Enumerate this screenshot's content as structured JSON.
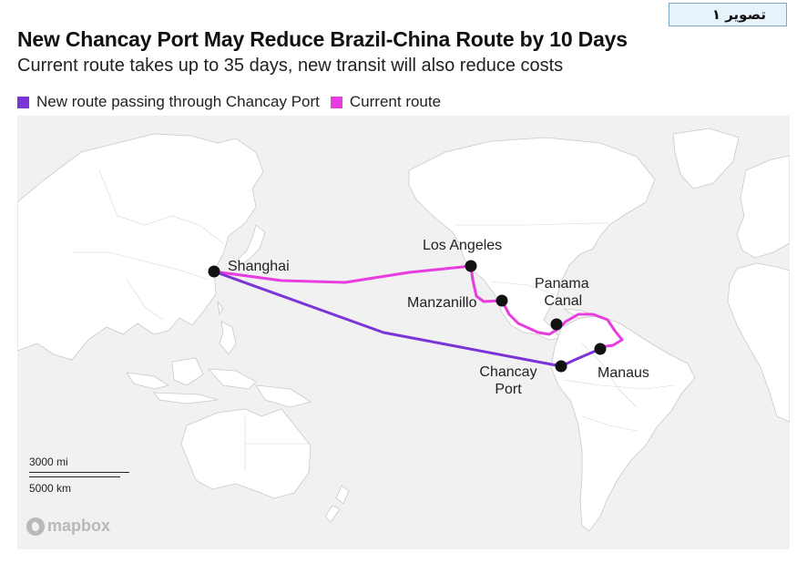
{
  "badge": {
    "text": "تصویر ۱"
  },
  "header": {
    "title": "New Chancay Port May Reduce Brazil-China Route by 10 Days",
    "subtitle": "Current route takes up to 35 days, new transit will also reduce costs"
  },
  "legend": {
    "items": [
      {
        "label": "New route passing through Chancay Port",
        "color": "#7b35d6"
      },
      {
        "label": "Current route",
        "color": "#e83ce0"
      }
    ]
  },
  "places": {
    "shanghai": "Shanghai",
    "los_angeles": "Los Angeles",
    "manzanillo": "Manzanillo",
    "panama_line1": "Panama",
    "panama_line2": "Canal",
    "chancay_line1": "Chancay",
    "chancay_line2": "Port",
    "manaus": "Manaus"
  },
  "scale": {
    "miles": "3000 mi",
    "km": "5000 km"
  },
  "attribution": {
    "text": "mapbox"
  },
  "colors": {
    "land": "#ffffff",
    "ocean": "#f1f1f1",
    "border": "#c9c9c9",
    "new_route": "#7b35d6",
    "current_route": "#e83ce0",
    "marker": "#111111"
  }
}
